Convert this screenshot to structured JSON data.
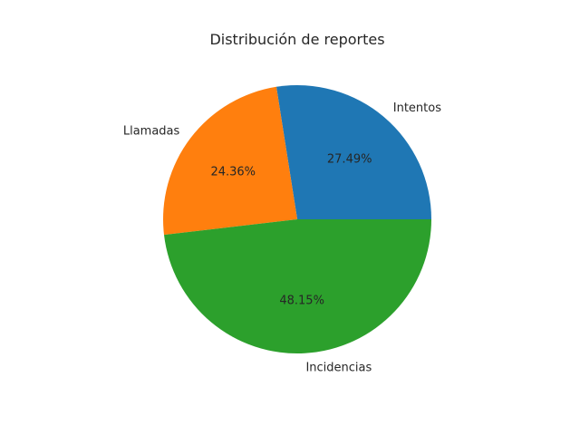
{
  "chart_data": {
    "type": "pie",
    "title": "Distribución de reportes",
    "slices": [
      {
        "label": "Intentos",
        "value": 27.49,
        "value_label": "27.49%",
        "color": "#1f77b4"
      },
      {
        "label": "Llamadas",
        "value": 24.36,
        "value_label": "24.36%",
        "color": "#ff7f0e"
      },
      {
        "label": "Incidencias",
        "value": 48.15,
        "value_label": "48.15%",
        "color": "#2ca02c"
      }
    ],
    "start_angle_deg": 0,
    "direction": "counterclockwise",
    "legend": "none"
  }
}
